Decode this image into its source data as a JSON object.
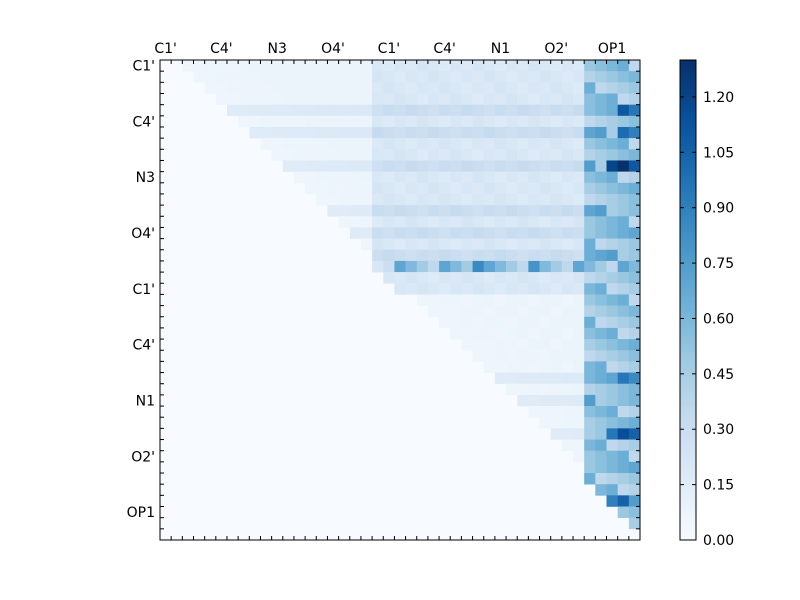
{
  "chart_data": {
    "type": "heatmap",
    "title": "",
    "n": 43,
    "top_tick_labels": [
      "C1'",
      "C4'",
      "N3",
      "O4'",
      "C1'",
      "C4'",
      "N1",
      "O2'",
      "OP1"
    ],
    "left_tick_labels": [
      "C1'",
      "C4'",
      "N3",
      "O4'",
      "C1'",
      "C4'",
      "N1",
      "O2'",
      "OP1"
    ],
    "label_indices": [
      0,
      5,
      10,
      15,
      20,
      25,
      30,
      35,
      40
    ],
    "value_range": [
      0.0,
      1.3
    ],
    "colorbar_ticks": [
      "0.00",
      "0.15",
      "0.30",
      "0.45",
      "0.60",
      "0.75",
      "0.90",
      "1.05",
      "1.20"
    ],
    "colorbar_tick_values": [
      0.0,
      0.15,
      0.3,
      0.45,
      0.6,
      0.75,
      0.9,
      1.05,
      1.2
    ],
    "colormap": [
      "#f7fbff",
      "#deebf7",
      "#c6dbef",
      "#9ecae1",
      "#6baed6",
      "#4292c6",
      "#2171b5",
      "#08519c",
      "#08306b"
    ],
    "notable_cells": [
      {
        "row": 9,
        "col": 41,
        "value": 1.3
      },
      {
        "row": 9,
        "col": 40,
        "value": 1.2
      },
      {
        "row": 9,
        "col": 42,
        "value": 1.1
      },
      {
        "row": 4,
        "col": 41,
        "value": 1.1
      },
      {
        "row": 4,
        "col": 42,
        "value": 0.95
      },
      {
        "row": 6,
        "col": 41,
        "value": 1.0
      },
      {
        "row": 6,
        "col": 42,
        "value": 0.9
      },
      {
        "row": 33,
        "col": 41,
        "value": 1.15
      },
      {
        "row": 33,
        "col": 42,
        "value": 1.05
      },
      {
        "row": 33,
        "col": 40,
        "value": 0.95
      },
      {
        "row": 39,
        "col": 41,
        "value": 1.05
      },
      {
        "row": 39,
        "col": 40,
        "value": 0.9
      },
      {
        "row": 28,
        "col": 41,
        "value": 0.95
      },
      {
        "row": 28,
        "col": 42,
        "value": 0.85
      },
      {
        "row": 18,
        "col": 28,
        "value": 0.85
      },
      {
        "row": 18,
        "col": 33,
        "value": 0.8
      }
    ]
  }
}
